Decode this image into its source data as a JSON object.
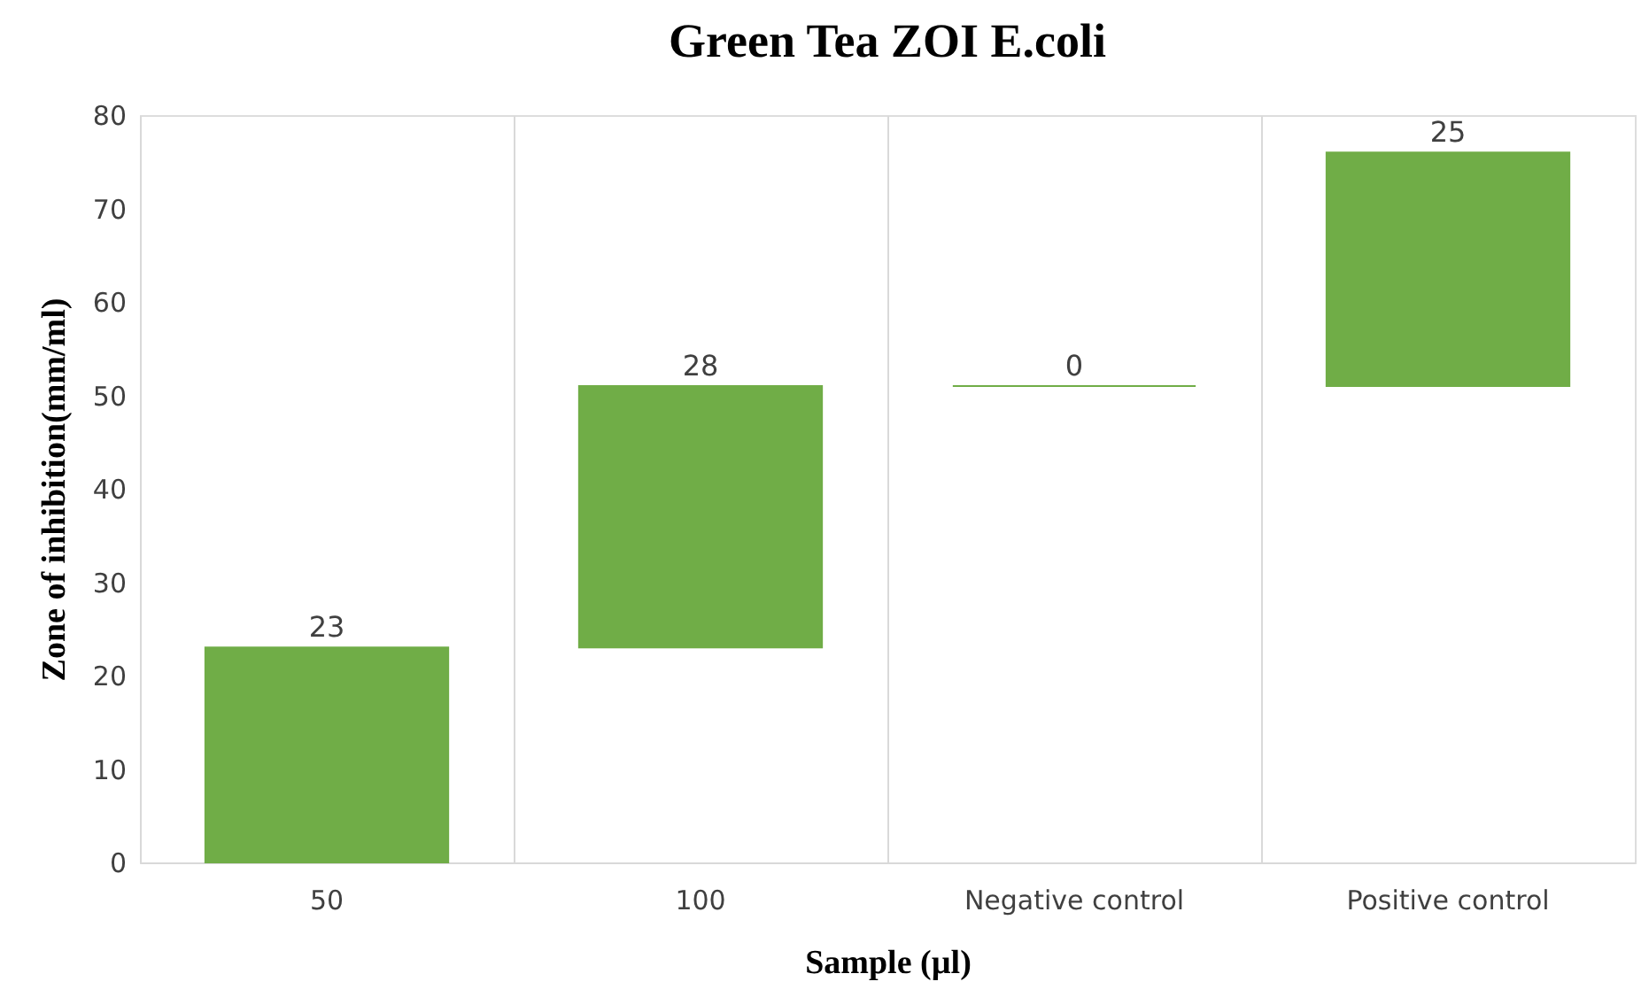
{
  "chart_data": {
    "type": "bar",
    "title": "Green Tea ZOI E.coli",
    "xlabel": "Sample (µl)",
    "ylabel": "Zone of inhibition(mm/ml)",
    "categories": [
      "50",
      "100",
      "Negative control",
      "Positive control"
    ],
    "values": [
      23,
      28,
      0,
      25
    ],
    "base": [
      0,
      23,
      51,
      51
    ],
    "colors": [
      "#70ad47",
      "#70ad47",
      "#70ad47",
      "#70ad47"
    ],
    "ylim": [
      0,
      80
    ],
    "yticks": [
      0,
      10,
      20,
      30,
      40,
      50,
      60,
      70,
      80
    ],
    "grid": "x",
    "data_labels": true
  }
}
